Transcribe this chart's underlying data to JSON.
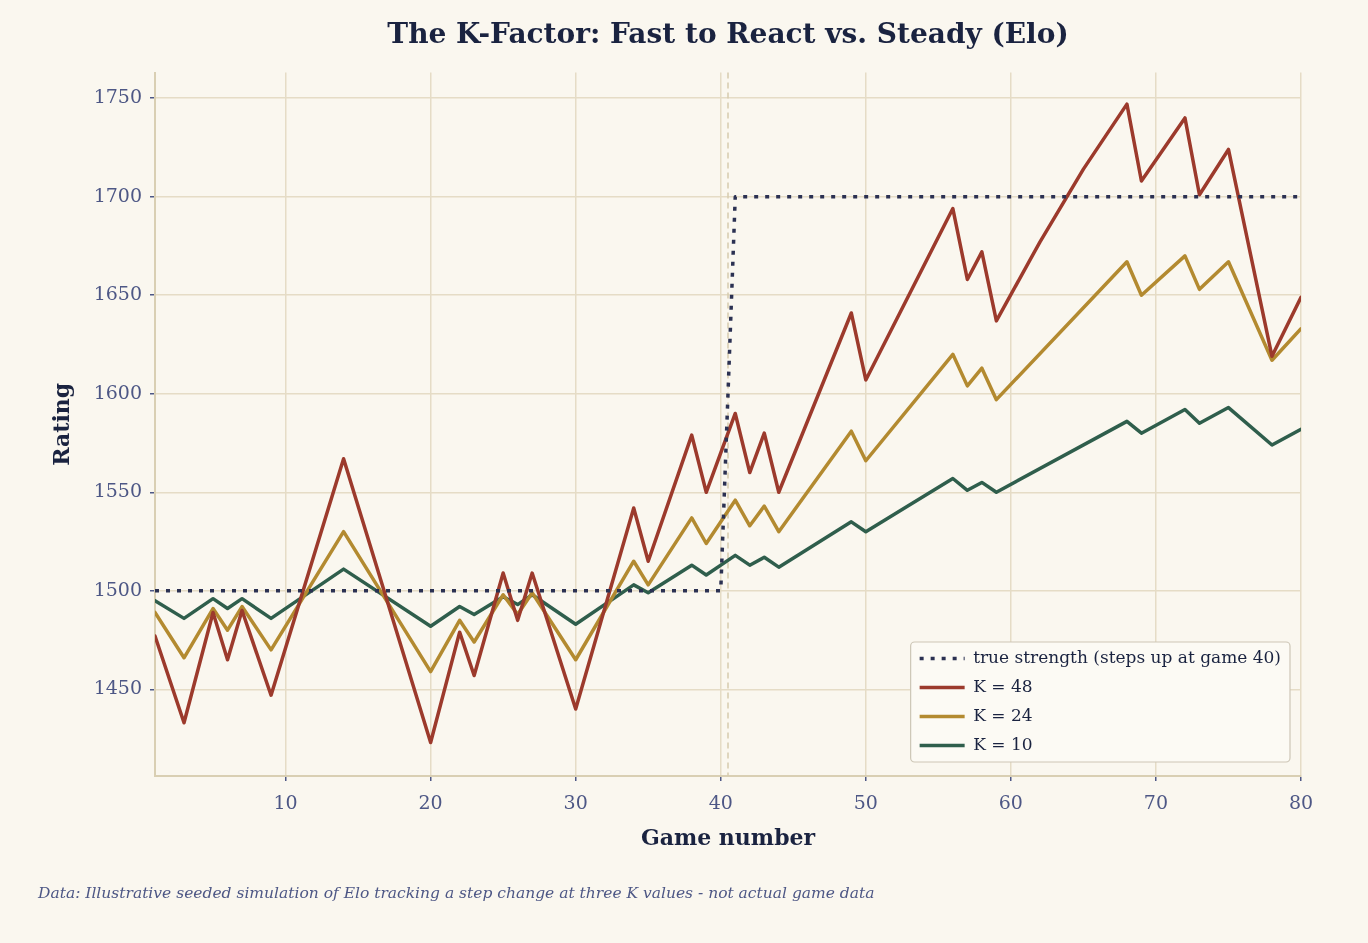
{
  "chart_data": {
    "type": "line",
    "title": "The K-Factor: Fast to React vs. Steady (Elo)",
    "xlabel": "Game number",
    "ylabel": "Rating",
    "annotations": [
      "Data: Illustrative seeded simulation of Elo tracking a step change at three K values - not actual game data"
    ],
    "series": [
      {
        "name": "true strength (steps up at game 40)",
        "color": "#2b3152",
        "line_style": "dotted",
        "x": [
          1,
          40,
          41,
          80
        ],
        "values": [
          1500,
          1500,
          1700,
          1700
        ]
      },
      {
        "name": "K = 48",
        "color": "#9c3a2c",
        "x": [
          1,
          3,
          5,
          6,
          7,
          9,
          14,
          20,
          22,
          23,
          25,
          26,
          27,
          30,
          34,
          35,
          38,
          39,
          41,
          42,
          43,
          44,
          49,
          50,
          56,
          57,
          58,
          59,
          62,
          65,
          68,
          69,
          72,
          73,
          75,
          78,
          80
        ],
        "values": [
          1477,
          1433,
          1489,
          1465,
          1490,
          1447,
          1567,
          1423,
          1479,
          1457,
          1509,
          1485,
          1509,
          1440,
          1542,
          1515,
          1579,
          1550,
          1590,
          1560,
          1580,
          1550,
          1641,
          1607,
          1694,
          1658,
          1672,
          1637,
          1677,
          1714,
          1747,
          1708,
          1740,
          1701,
          1724,
          1619,
          1649
        ]
      },
      {
        "name": "K = 24",
        "color": "#b38a30",
        "x": [
          1,
          3,
          5,
          6,
          7,
          9,
          14,
          20,
          22,
          23,
          25,
          26,
          27,
          30,
          34,
          35,
          38,
          39,
          41,
          42,
          43,
          44,
          49,
          50,
          56,
          57,
          58,
          59,
          68,
          69,
          72,
          73,
          75,
          78,
          80
        ],
        "values": [
          1489,
          1466,
          1491,
          1480,
          1492,
          1470,
          1530,
          1459,
          1485,
          1474,
          1498,
          1488,
          1499,
          1465,
          1515,
          1503,
          1537,
          1524,
          1546,
          1533,
          1543,
          1530,
          1581,
          1566,
          1620,
          1604,
          1613,
          1597,
          1667,
          1650,
          1670,
          1653,
          1667,
          1617,
          1633
        ]
      },
      {
        "name": "K = 10",
        "color": "#2f5e4c",
        "x": [
          1,
          3,
          5,
          6,
          7,
          9,
          14,
          20,
          22,
          23,
          25,
          26,
          27,
          30,
          34,
          35,
          38,
          39,
          41,
          42,
          43,
          44,
          49,
          50,
          56,
          57,
          58,
          59,
          68,
          69,
          72,
          73,
          75,
          78,
          80
        ],
        "values": [
          1495,
          1486,
          1496,
          1491,
          1496,
          1486,
          1511,
          1482,
          1492,
          1488,
          1497,
          1493,
          1498,
          1483,
          1503,
          1499,
          1513,
          1508,
          1518,
          1513,
          1517,
          1512,
          1535,
          1530,
          1557,
          1551,
          1555,
          1550,
          1586,
          1580,
          1592,
          1585,
          1593,
          1574,
          1582
        ]
      }
    ],
    "xlim": [
      1,
      80
    ],
    "xticks": [
      10,
      20,
      30,
      40,
      50,
      60,
      70,
      80
    ],
    "ylim": [
      1406,
      1763
    ],
    "yticks": [
      1450,
      1500,
      1550,
      1600,
      1650,
      1700,
      1750
    ],
    "ref_lines": [
      {
        "axis": "x",
        "value": 40.5,
        "color": "#d6cbae",
        "line_style": "dashed"
      }
    ],
    "grid": true,
    "legend": "bottom right",
    "marker": "none"
  }
}
